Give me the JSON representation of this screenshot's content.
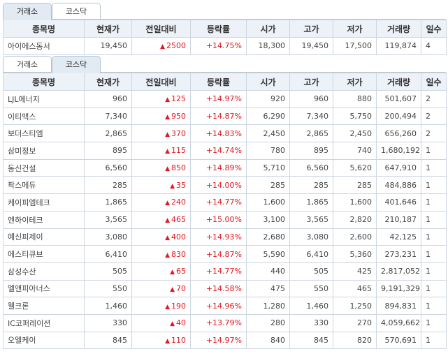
{
  "top": {
    "tabs": [
      {
        "label": "거래소",
        "active": true
      },
      {
        "label": "코스닥",
        "active": false
      }
    ],
    "headers": [
      "종목명",
      "현재가",
      "전일대비",
      "등락률",
      "시가",
      "고가",
      "저가",
      "거래량",
      "일수"
    ],
    "rows": [
      {
        "name": "아이에스동서",
        "price": "19,450",
        "change": "2500",
        "rate": "+14.75%",
        "open": "18,300",
        "high": "19,450",
        "low": "17,500",
        "volume": "119,874",
        "days": "4"
      }
    ]
  },
  "bottom": {
    "tabs": [
      {
        "label": "거래소",
        "active": false
      },
      {
        "label": "코스닥",
        "active": true
      }
    ],
    "headers": [
      "종목명",
      "현재가",
      "전일대비",
      "등락률",
      "시가",
      "고가",
      "저가",
      "거래량",
      "일수"
    ],
    "rows": [
      {
        "name": "LJL에너지",
        "price": "960",
        "change": "125",
        "rate": "+14.97%",
        "open": "920",
        "high": "960",
        "low": "880",
        "volume": "501,607",
        "days": "2"
      },
      {
        "name": "이티맥스",
        "price": "7,340",
        "change": "950",
        "rate": "+14.87%",
        "open": "6,290",
        "high": "7,340",
        "low": "5,750",
        "volume": "200,494",
        "days": "2"
      },
      {
        "name": "보더스티엠",
        "price": "2,865",
        "change": "370",
        "rate": "+14.83%",
        "open": "2,450",
        "high": "2,865",
        "low": "2,450",
        "volume": "656,260",
        "days": "2"
      },
      {
        "name": "삼미정보",
        "price": "895",
        "change": "115",
        "rate": "+14.74%",
        "open": "780",
        "high": "895",
        "low": "740",
        "volume": "1,680,192",
        "days": "1"
      },
      {
        "name": "동신건설",
        "price": "6,560",
        "change": "850",
        "rate": "+14.89%",
        "open": "5,710",
        "high": "6,560",
        "low": "5,620",
        "volume": "647,910",
        "days": "1"
      },
      {
        "name": "팍스메듀",
        "price": "285",
        "change": "35",
        "rate": "+14.00%",
        "open": "285",
        "high": "285",
        "low": "285",
        "volume": "484,886",
        "days": "1"
      },
      {
        "name": "케이피엠테크",
        "price": "1,865",
        "change": "240",
        "rate": "+14.77%",
        "open": "1,600",
        "high": "1,865",
        "low": "1,600",
        "volume": "401,646",
        "days": "1"
      },
      {
        "name": "엔하이테크",
        "price": "3,565",
        "change": "465",
        "rate": "+15.00%",
        "open": "3,100",
        "high": "3,565",
        "low": "2,820",
        "volume": "210,187",
        "days": "1"
      },
      {
        "name": "예신피제이",
        "price": "3,080",
        "change": "400",
        "rate": "+14.93%",
        "open": "2,680",
        "high": "3,080",
        "low": "2,600",
        "volume": "42,125",
        "days": "1"
      },
      {
        "name": "에스티큐브",
        "price": "6,410",
        "change": "830",
        "rate": "+14.87%",
        "open": "5,590",
        "high": "6,410",
        "low": "5,360",
        "volume": "273,231",
        "days": "1"
      },
      {
        "name": "삼성수산",
        "price": "505",
        "change": "65",
        "rate": "+14.77%",
        "open": "440",
        "high": "505",
        "low": "425",
        "volume": "2,817,052",
        "days": "1"
      },
      {
        "name": "엘앤피아너스",
        "price": "550",
        "change": "70",
        "rate": "+14.58%",
        "open": "475",
        "high": "550",
        "low": "465",
        "volume": "9,191,329",
        "days": "1"
      },
      {
        "name": "웰크론",
        "price": "1,460",
        "change": "190",
        "rate": "+14.96%",
        "open": "1,280",
        "high": "1,460",
        "low": "1,250",
        "volume": "894,831",
        "days": "1"
      },
      {
        "name": "IC코퍼레이션",
        "price": "330",
        "change": "40",
        "rate": "+13.79%",
        "open": "280",
        "high": "330",
        "low": "270",
        "volume": "4,059,662",
        "days": "1"
      },
      {
        "name": "오엘케이",
        "price": "845",
        "change": "110",
        "rate": "+14.97%",
        "open": "840",
        "high": "845",
        "low": "820",
        "volume": "570,691",
        "days": "1"
      }
    ]
  },
  "colors": {
    "up": "#e0171f",
    "header_bg": "#ecf2f8",
    "border": "#cdd6df",
    "tab_active_bg": "#e2ebf3"
  },
  "icons": {
    "up_marker": "up-triangle-icon"
  }
}
